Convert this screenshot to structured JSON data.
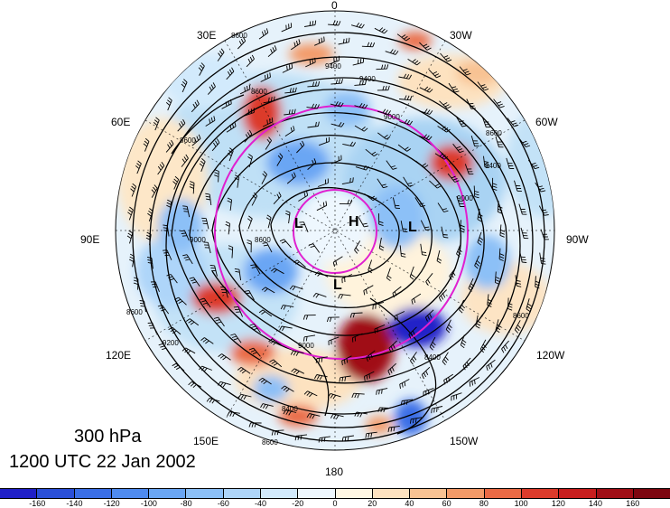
{
  "title": {
    "level": "300 hPa",
    "time": "1200 UTC 22 Jan 2002"
  },
  "lon_labels": {
    "n0": "0",
    "n30w": "30W",
    "n60w": "60W",
    "n90w": "90W",
    "n120w": "120W",
    "n150w": "150W",
    "n180": "180",
    "n150e": "150E",
    "n120e": "120E",
    "n90e": "90E",
    "n60e": "60E",
    "n30e": "30E"
  },
  "highs_lows": [
    {
      "mark": "L",
      "name": "low-marker-west"
    },
    {
      "mark": "H",
      "name": "high-marker-pole"
    },
    {
      "mark": "L",
      "name": "low-marker-east"
    },
    {
      "mark": "L",
      "name": "low-marker-south"
    }
  ],
  "contour_labels": [
    "8400",
    "8600",
    "9000",
    "9200",
    "9400",
    "8800"
  ],
  "colorbar": {
    "ticks": [
      "-160",
      "-140",
      "-120",
      "-100",
      "-80",
      "-60",
      "-40",
      "-20",
      "0",
      "20",
      "40",
      "60",
      "80",
      "100",
      "120",
      "140",
      "160"
    ],
    "colors": [
      "#2020c8",
      "#2a4fd8",
      "#3a6ee6",
      "#4f8bef",
      "#6aa6f4",
      "#8cc0f7",
      "#aed5f9",
      "#d2eafc",
      "#eef7fe",
      "#fff7e4",
      "#fde2c0",
      "#f8c293",
      "#f39a68",
      "#ea6a45",
      "#dc3b2b",
      "#c81e1e",
      "#a00e16",
      "#7d0610"
    ]
  },
  "colors": {
    "magenta": "#e020d0",
    "contour": "#000000"
  }
}
